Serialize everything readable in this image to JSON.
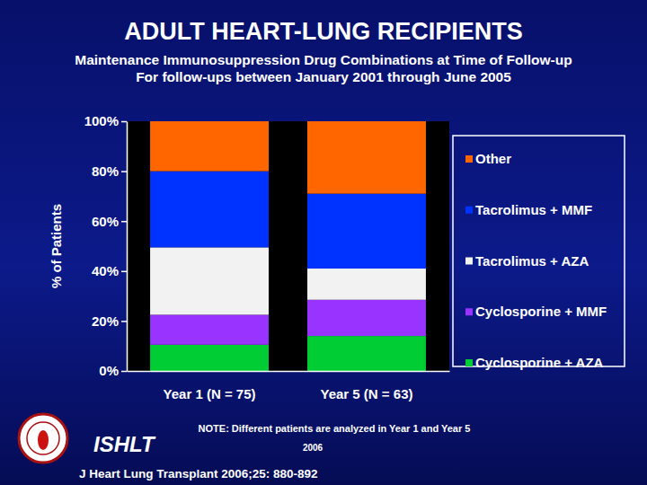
{
  "chart_data": {
    "type": "bar",
    "stacked": true,
    "title": "ADULT HEART-LUNG RECIPIENTS",
    "subtitle": "Maintenance Immunosuppression Drug Combinations at Time of Follow-up",
    "subtitle2": "For follow-ups between January 2001 through June 2005",
    "y_label": "% of Patients",
    "categories": [
      "Year 1 (N = 75)",
      "Year 5 (N = 63)"
    ],
    "series": [
      {
        "name": "Cyclosporine + AZA",
        "color": "#00cc33",
        "values": [
          10.5,
          14
        ]
      },
      {
        "name": "Cyclosporine + MMF",
        "color": "#9933ff",
        "values": [
          12,
          14.5
        ]
      },
      {
        "name": "Tacrolimus + AZA",
        "color": "#f2f2f2",
        "values": [
          27,
          12.5
        ]
      },
      {
        "name": "Tacrolimus + MMF",
        "color": "#0033ff",
        "values": [
          30.5,
          30
        ]
      },
      {
        "name": "Other",
        "color": "#ff6600",
        "values": [
          20,
          29
        ]
      }
    ],
    "ylim": [
      0,
      100
    ],
    "yticks": [
      {
        "value": 0,
        "label": "0%"
      },
      {
        "value": 20,
        "label": "20%"
      },
      {
        "value": 40,
        "label": "40%"
      },
      {
        "value": 60,
        "label": "60%"
      },
      {
        "value": 80,
        "label": "80%"
      },
      {
        "value": 100,
        "label": "100%"
      }
    ],
    "grid": false,
    "legend": "right",
    "note": "NOTE: Different patients are analyzed in Year 1 and Year 5",
    "org": "ISHLT",
    "year": "2006",
    "source": "J Heart Lung Transplant 2006;25: 880-892"
  }
}
